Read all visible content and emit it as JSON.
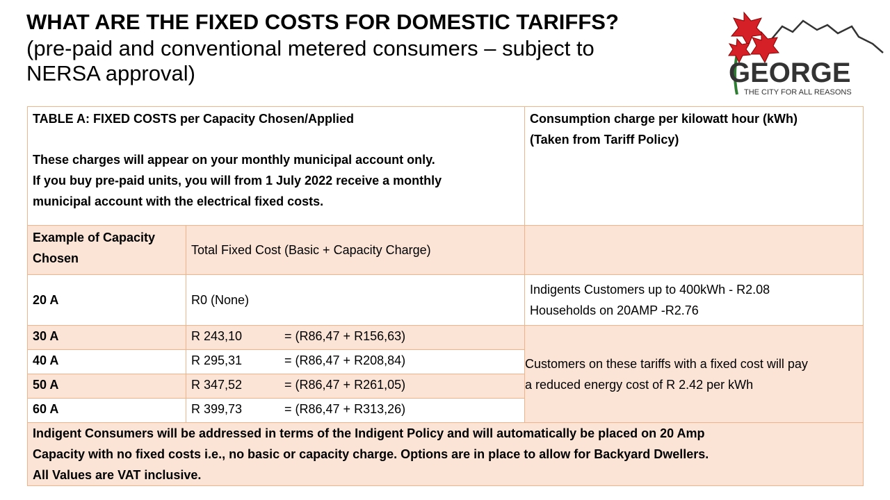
{
  "title": {
    "line1": "WHAT ARE THE FIXED COSTS FOR DOMESTIC TARIFFS?",
    "line2": "(pre-paid and conventional metered consumers – subject to",
    "line3": "NERSA approval)"
  },
  "logo": {
    "name": "GEORGE",
    "tagline": "THE CITY FOR ALL REASONS",
    "colors": {
      "flower": "#d62027",
      "text": "#333333",
      "stem": "#2e7d32"
    }
  },
  "table": {
    "header_left": {
      "title": "TABLE A: FIXED COSTS per Capacity Chosen/Applied",
      "line1": "These charges will appear on your monthly municipal account only.",
      "line2": "If you buy pre-paid units, you will from 1 July 2022 receive a monthly",
      "line3": "municipal account with the electrical fixed costs."
    },
    "header_right": {
      "line1": "Consumption charge per kilowatt hour (kWh)",
      "line2": "(Taken from Tariff Policy)"
    },
    "col_headers": {
      "capacity_line1": "Example of Capacity",
      "capacity_line2": "Chosen",
      "total": "Total Fixed Cost (Basic + Capacity Charge)"
    },
    "row_20a": {
      "capacity": "20 A",
      "cost": "R0 (None)",
      "charge_line1": "Indigents Customers up to 400kWh - R2.08",
      "charge_line2": "Households on 20AMP -R2.76"
    },
    "rows": [
      {
        "capacity": "30 A",
        "amount": "R 243,10",
        "breakdown": "= (R86,47 + R156,63)"
      },
      {
        "capacity": "40 A",
        "amount": "R 295,31",
        "breakdown": "= (R86,47 + R208,84)"
      },
      {
        "capacity": "50 A",
        "amount": "R 347,52",
        "breakdown": "= (R86,47 + R261,05)"
      },
      {
        "capacity": "60 A",
        "amount": "R 399,73",
        "breakdown": "= (R86,47 + R313,26)"
      }
    ],
    "reduced_line1": "Customers on these tariffs with a fixed cost will pay",
    "reduced_line2": "a reduced energy cost of R 2.42 per kWh",
    "footer": {
      "line1": "Indigent Consumers will be addressed in terms of the Indigent Policy and will automatically be placed on 20 Amp",
      "line2": "Capacity with no fixed costs i.e., no basic or capacity charge. Options are in place to allow for Backyard Dwellers.",
      "line3": "All Values are VAT inclusive."
    }
  }
}
